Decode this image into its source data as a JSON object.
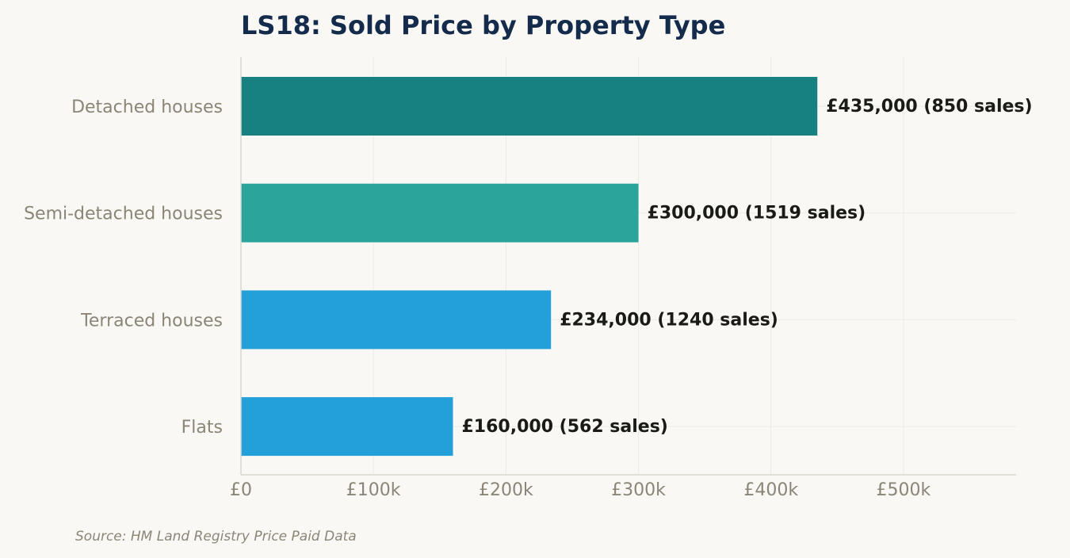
{
  "chart_data": {
    "type": "bar",
    "orientation": "horizontal",
    "title": "LS18: Sold Price by Property Type",
    "categories": [
      "Detached houses",
      "Semi-detached houses",
      "Terraced houses",
      "Flats"
    ],
    "values": [
      435000,
      300000,
      234000,
      160000
    ],
    "sales": [
      850,
      1519,
      1240,
      562
    ],
    "value_labels": [
      "£435,000  (850 sales)",
      "£300,000  (1519 sales)",
      "£234,000  (1240 sales)",
      "£160,000  (562 sales)"
    ],
    "bar_colors": [
      "#178181",
      "#2ba59c",
      "#239fd9",
      "#239fd9"
    ],
    "xlim": [
      0,
      585000
    ],
    "xticks": [
      0,
      100000,
      200000,
      300000,
      400000,
      500000
    ],
    "xtick_labels": [
      "£0",
      "£100k",
      "£200k",
      "£300k",
      "£400k",
      "£500k"
    ],
    "grid": true,
    "source": "Source: HM Land Registry Price Paid Data"
  }
}
